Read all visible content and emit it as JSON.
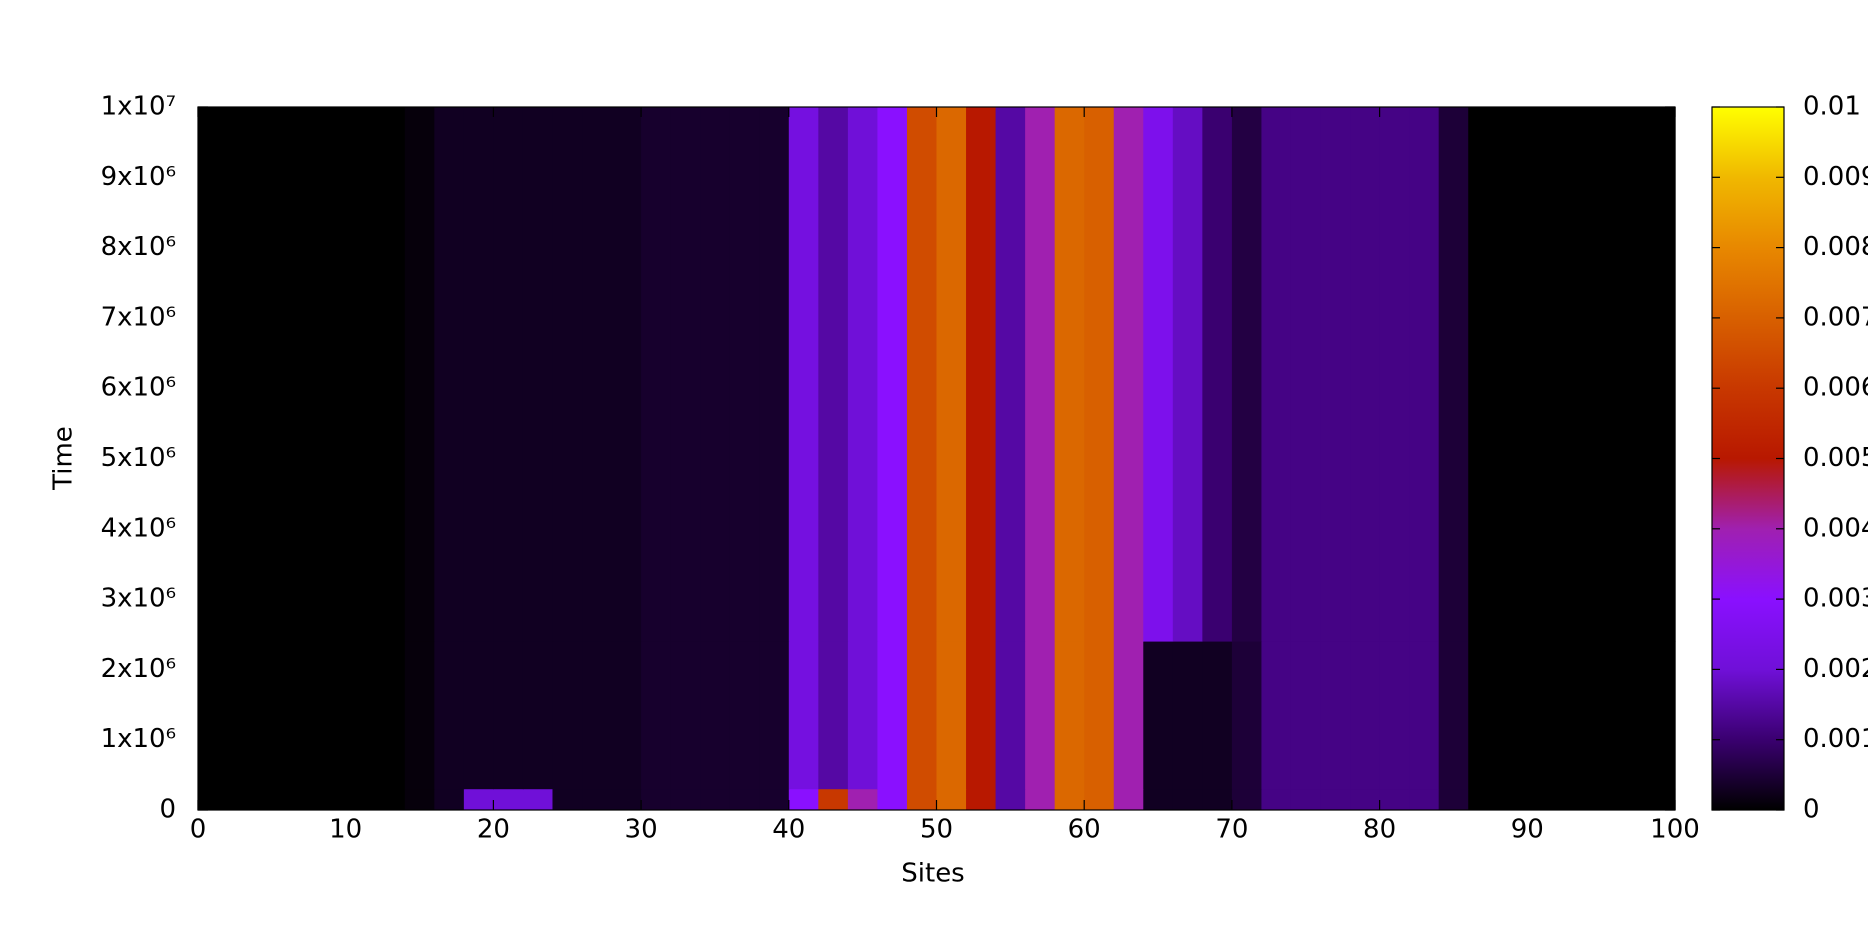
{
  "chart_data": {
    "type": "heatmap",
    "xlabel": "Sites",
    "ylabel": "Time",
    "xlim": [
      0,
      100
    ],
    "xticks": [
      0,
      10,
      20,
      30,
      40,
      50,
      60,
      70,
      80,
      90,
      100
    ],
    "ylim": [
      0,
      10000000
    ],
    "yticks": [
      0,
      {
        "value": 1000000,
        "label": "1x10⁶"
      },
      {
        "value": 2000000,
        "label": "2x10⁶"
      },
      {
        "value": 3000000,
        "label": "3x10⁶"
      },
      {
        "value": 4000000,
        "label": "4x10⁶"
      },
      {
        "value": 5000000,
        "label": "5x10⁶"
      },
      {
        "value": 6000000,
        "label": "6x10⁶"
      },
      {
        "value": 7000000,
        "label": "7x10⁶"
      },
      {
        "value": 8000000,
        "label": "8x10⁶"
      },
      {
        "value": 9000000,
        "label": "9x10⁶"
      },
      {
        "value": 10000000,
        "label": "1x10⁷"
      }
    ],
    "zlim": [
      0,
      0.01
    ],
    "zticks": [
      0,
      0.001,
      0.002,
      0.003,
      0.004,
      0.005,
      0.006,
      0.007,
      0.008,
      0.009,
      0.01
    ],
    "colormap": [
      "#000000",
      "#3a0070",
      "#7010d8",
      "#8a10ff",
      "#a020b0",
      "#b81800",
      "#c83800",
      "#d86000",
      "#e88800",
      "#f0b800",
      "#ffff00"
    ],
    "x_edges": [
      0,
      2,
      4,
      6,
      8,
      10,
      12,
      14,
      16,
      18,
      20,
      22,
      24,
      26,
      28,
      30,
      32,
      34,
      36,
      38,
      40,
      42,
      44,
      46,
      48,
      50,
      52,
      54,
      56,
      58,
      60,
      62,
      64,
      66,
      68,
      70,
      72,
      74,
      76,
      78,
      80,
      82,
      84,
      86,
      88,
      90,
      92,
      94,
      96,
      98,
      100
    ],
    "y_edges": [
      0,
      300000,
      2400000,
      10000000
    ],
    "z": [
      [
        0,
        0,
        0,
        0,
        0,
        0,
        0,
        0.0001,
        0.0003,
        0.002,
        0.002,
        0.002,
        0.0003,
        0.0003,
        0.0003,
        0.0004,
        0.0004,
        0.0004,
        0.0004,
        0.0004,
        0.003,
        0.006,
        0.004,
        0.003,
        0.0065,
        0.0072,
        0.005,
        0.0015,
        0.004,
        0.0072,
        0.007,
        0.004,
        0.0003,
        0.0003,
        0.0003,
        0.0005,
        0.0012,
        0.0012,
        0.0012,
        0.0012,
        0.0012,
        0.0012,
        0.0005,
        0,
        0,
        0,
        0,
        0,
        0,
        0
      ],
      [
        0,
        0,
        0,
        0,
        0,
        0,
        0,
        0.0001,
        0.0003,
        0.0003,
        0.0003,
        0.0003,
        0.0003,
        0.0003,
        0.0003,
        0.0004,
        0.0004,
        0.0004,
        0.0004,
        0.0004,
        0.0022,
        0.0015,
        0.002,
        0.003,
        0.0065,
        0.0072,
        0.005,
        0.0015,
        0.004,
        0.0072,
        0.007,
        0.004,
        0.0003,
        0.0003,
        0.0003,
        0.0005,
        0.0012,
        0.0012,
        0.0012,
        0.0012,
        0.0012,
        0.0012,
        0.0005,
        0,
        0,
        0,
        0,
        0,
        0,
        0
      ],
      [
        0,
        0,
        0,
        0,
        0,
        0,
        0,
        0.0001,
        0.0003,
        0.0003,
        0.0003,
        0.0003,
        0.0003,
        0.0003,
        0.0003,
        0.0004,
        0.0004,
        0.0004,
        0.0004,
        0.0004,
        0.0022,
        0.0015,
        0.002,
        0.003,
        0.0065,
        0.0072,
        0.005,
        0.0015,
        0.004,
        0.0072,
        0.007,
        0.004,
        0.0025,
        0.0018,
        0.001,
        0.0006,
        0.0012,
        0.0012,
        0.0012,
        0.0012,
        0.0012,
        0.0012,
        0.0005,
        0,
        0,
        0,
        0,
        0,
        0,
        0
      ]
    ]
  }
}
